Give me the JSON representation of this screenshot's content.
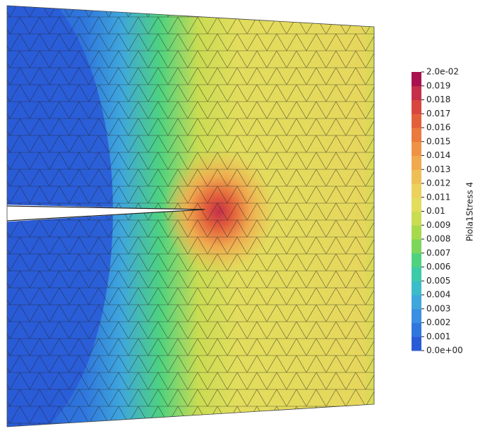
{
  "colorbar": {
    "title": "Piola1Stress 4",
    "range": [
      0,
      0.02
    ],
    "ticks": [
      {
        "value": 0,
        "label": "0.0e+00"
      },
      0.001,
      0.002,
      0.003,
      0.004,
      0.005,
      0.006,
      0.007,
      0.008,
      0.009,
      0.01,
      0.011,
      0.012,
      0.013,
      0.014,
      0.015,
      0.016,
      0.017,
      0.018,
      0.019,
      {
        "value": 0.02,
        "label": "2.0e-02"
      }
    ],
    "colors": [
      "#2a5bd7",
      "#2f76dd",
      "#3b8fe0",
      "#3fa7dc",
      "#3cbcc8",
      "#3ccaa8",
      "#4ed27f",
      "#7cd65a",
      "#a7d94e",
      "#c9dc52",
      "#e2dd5c",
      "#ecd15d",
      "#efbf57",
      "#efa94e",
      "#ee9346",
      "#ea7a3f",
      "#e3603b",
      "#d8463f",
      "#c52f4a",
      "#a8124f"
    ]
  }
}
